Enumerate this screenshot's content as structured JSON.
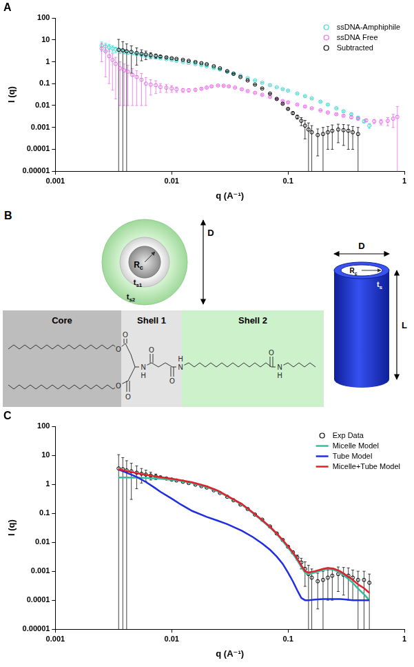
{
  "chart_data": [
    {
      "panel": "A",
      "type": "scatter",
      "log": true,
      "grid": false,
      "legend": "top-right",
      "x_label": "q (A⁻¹)",
      "y_label": "I (q)",
      "xlim": [
        0.001,
        1
      ],
      "ylim": [
        1e-05,
        100
      ],
      "xticks": [
        0.001,
        0.01,
        0.1,
        1
      ],
      "yticks": [
        1e-05,
        0.0001,
        0.001,
        0.01,
        0.1,
        1,
        10,
        100
      ],
      "series": [
        {
          "name": "ssDNA-Amphiphile",
          "color": "#3fd6d0",
          "marker": "circle",
          "x": [
            0.0025,
            0.0027,
            0.0029,
            0.0031,
            0.0033,
            0.0036,
            0.0039,
            0.0042,
            0.0046,
            0.005,
            0.0055,
            0.006,
            0.0066,
            0.0073,
            0.008,
            0.009,
            0.01,
            0.011,
            0.0125,
            0.014,
            0.016,
            0.018,
            0.02,
            0.023,
            0.026,
            0.03,
            0.034,
            0.039,
            0.045,
            0.052,
            0.06,
            0.07,
            0.08,
            0.09,
            0.1,
            0.12,
            0.14,
            0.16,
            0.19,
            0.22,
            0.26,
            0.3,
            0.35,
            0.4,
            0.45,
            0.5
          ],
          "values": [
            5.5,
            5.0,
            4.5,
            4.0,
            3.6,
            3.2,
            2.9,
            2.6,
            2.4,
            2.2,
            2.0,
            1.85,
            1.7,
            1.55,
            1.45,
            1.3,
            1.2,
            1.1,
            0.98,
            0.88,
            0.78,
            0.7,
            0.62,
            0.52,
            0.44,
            0.35,
            0.29,
            0.23,
            0.18,
            0.14,
            0.11,
            0.085,
            0.068,
            0.056,
            0.048,
            0.035,
            0.027,
            0.021,
            0.015,
            0.011,
            0.0075,
            0.0055,
            0.004,
            0.0028,
            0.0019,
            0.0012
          ],
          "errors": [
            2.5,
            2.0,
            1.6,
            1.3,
            1.0,
            0.8,
            0.6,
            0.4,
            0.3,
            0.2,
            0.15,
            0.1,
            0.08,
            0.06,
            0.05,
            0.04,
            0.03,
            0.03,
            0.02,
            0.02,
            0.02,
            0.02,
            0.02,
            0.015,
            0.01,
            0.01,
            0.008,
            0.006,
            0.005,
            0.004,
            0.003,
            0.003,
            0.002,
            0.002,
            0.002,
            0.0015,
            0.001,
            0.001,
            0.0008,
            0.0006,
            0.0005,
            0.0004,
            0.0003,
            0.0003,
            0.0003,
            0.0003
          ]
        },
        {
          "name": "ssDNA Free",
          "color": "#ee66ee",
          "marker": "circle",
          "x": [
            0.0025,
            0.0027,
            0.0029,
            0.0031,
            0.0033,
            0.0036,
            0.0039,
            0.0042,
            0.0046,
            0.005,
            0.0055,
            0.006,
            0.0066,
            0.0073,
            0.008,
            0.009,
            0.01,
            0.011,
            0.0125,
            0.014,
            0.016,
            0.018,
            0.02,
            0.022,
            0.025,
            0.028,
            0.031,
            0.035,
            0.04,
            0.045,
            0.052,
            0.06,
            0.07,
            0.08,
            0.09,
            0.1,
            0.12,
            0.14,
            0.16,
            0.19,
            0.22,
            0.26,
            0.3,
            0.35,
            0.4,
            0.47,
            0.55,
            0.63,
            0.72,
            0.8,
            0.87
          ],
          "values": [
            4.0,
            3.0,
            1.8,
            1.2,
            0.8,
            0.5,
            0.4,
            0.35,
            0.25,
            0.2,
            0.15,
            0.1,
            0.09,
            0.085,
            0.07,
            0.065,
            0.06,
            0.055,
            0.05,
            0.05,
            0.052,
            0.058,
            0.066,
            0.075,
            0.082,
            0.08,
            0.075,
            0.066,
            0.055,
            0.046,
            0.038,
            0.031,
            0.025,
            0.02,
            0.016,
            0.014,
            0.011,
            0.009,
            0.0075,
            0.006,
            0.0048,
            0.004,
            0.0034,
            0.0029,
            0.0025,
            0.0021,
            0.0019,
            0.0018,
            0.002,
            0.0025,
            0.003
          ],
          "errors": [
            3.0,
            2.8,
            1.7,
            1.15,
            0.78,
            0.49,
            0.39,
            0.34,
            0.24,
            0.19,
            0.14,
            0.09,
            0.06,
            0.05,
            0.03,
            0.025,
            0.02,
            0.015,
            0.01,
            0.008,
            0.006,
            0.005,
            0.005,
            0.005,
            0.005,
            0.005,
            0.004,
            0.004,
            0.003,
            0.003,
            0.002,
            0.002,
            0.0015,
            0.0012,
            0.001,
            0.0008,
            0.0006,
            0.0005,
            0.0004,
            0.0003,
            0.0003,
            0.0003,
            0.0003,
            0.0003,
            0.0003,
            0.0003,
            0.0004,
            0.0005,
            0.0008,
            0.0015,
            0.006
          ]
        },
        {
          "name": "Subtracted",
          "color": "#000000",
          "marker": "circle",
          "x": [
            0.0035,
            0.0038,
            0.0041,
            0.0045,
            0.005,
            0.0055,
            0.006,
            0.0066,
            0.0073,
            0.008,
            0.009,
            0.01,
            0.011,
            0.0125,
            0.014,
            0.016,
            0.018,
            0.02,
            0.023,
            0.026,
            0.03,
            0.034,
            0.039,
            0.045,
            0.052,
            0.06,
            0.07,
            0.08,
            0.09,
            0.1,
            0.11,
            0.12,
            0.13,
            0.14,
            0.15,
            0.16,
            0.18,
            0.2,
            0.22,
            0.24,
            0.27,
            0.3,
            0.33,
            0.36,
            0.4
          ],
          "values": [
            3.5,
            3.3,
            3.0,
            2.8,
            2.5,
            2.3,
            2.15,
            2.0,
            1.85,
            1.72,
            1.58,
            1.45,
            1.35,
            1.22,
            1.1,
            0.97,
            0.86,
            0.77,
            0.62,
            0.5,
            0.37,
            0.28,
            0.2,
            0.14,
            0.09,
            0.06,
            0.035,
            0.02,
            0.012,
            0.007,
            0.0045,
            0.003,
            0.002,
            0.0012,
            0.0008,
            0.0006,
            0.00045,
            0.0005,
            0.0006,
            0.0007,
            0.0008,
            0.00075,
            0.0007,
            0.0006,
            0.0005
          ],
          "errors": [
            7.0,
            5.0,
            3.5,
            2.5,
            1.8,
            1.2,
            0.9,
            0.6,
            0.4,
            0.2,
            0.1,
            0.05,
            0.04,
            0.03,
            0.02,
            0.02,
            0.015,
            0.01,
            0.01,
            0.008,
            0.006,
            0.005,
            0.004,
            0.003,
            0.002,
            0.0015,
            0.001,
            0.0008,
            0.0006,
            0.0005,
            0.0005,
            0.0006,
            0.0008,
            0.0009,
            0.0008,
            0.0006,
            0.0004,
            0.0005,
            0.0005,
            0.0006,
            0.0006,
            0.0006,
            0.0006,
            0.0005,
            0.0005
          ]
        }
      ]
    },
    {
      "panel": "C",
      "type": "scatter",
      "log": true,
      "grid": false,
      "legend": "top-right",
      "x_label": "q (A⁻¹)",
      "y_label": "I (q)",
      "xlim": [
        0.001,
        1
      ],
      "ylim": [
        1e-05,
        100
      ],
      "xticks": [
        0.001,
        0.01,
        0.1,
        1
      ],
      "yticks": [
        1e-05,
        0.0001,
        0.001,
        0.01,
        0.1,
        1,
        10,
        100
      ],
      "series": [
        {
          "name": "Exp Data",
          "color": "#000000",
          "marker": "circle",
          "x": [
            0.0035,
            0.0038,
            0.0041,
            0.0045,
            0.005,
            0.0055,
            0.006,
            0.0066,
            0.0073,
            0.008,
            0.009,
            0.01,
            0.011,
            0.0125,
            0.014,
            0.016,
            0.018,
            0.02,
            0.023,
            0.026,
            0.03,
            0.034,
            0.039,
            0.045,
            0.052,
            0.06,
            0.07,
            0.08,
            0.09,
            0.1,
            0.11,
            0.12,
            0.13,
            0.14,
            0.15,
            0.16,
            0.18,
            0.2,
            0.22,
            0.24,
            0.27,
            0.3,
            0.33,
            0.36,
            0.4,
            0.45,
            0.5
          ],
          "values": [
            3.5,
            3.3,
            3.0,
            2.8,
            2.5,
            2.3,
            2.15,
            2.0,
            1.85,
            1.72,
            1.58,
            1.45,
            1.35,
            1.22,
            1.1,
            0.97,
            0.86,
            0.77,
            0.62,
            0.5,
            0.37,
            0.28,
            0.2,
            0.14,
            0.09,
            0.06,
            0.035,
            0.02,
            0.012,
            0.007,
            0.0045,
            0.003,
            0.002,
            0.0012,
            0.0008,
            0.0006,
            0.00045,
            0.0005,
            0.0006,
            0.0007,
            0.0008,
            0.00075,
            0.0007,
            0.0006,
            0.0005,
            0.0005,
            0.0004
          ],
          "errors": [
            7.0,
            5.0,
            3.5,
            2.5,
            1.8,
            1.2,
            0.9,
            0.6,
            0.4,
            0.2,
            0.1,
            0.05,
            0.04,
            0.03,
            0.02,
            0.02,
            0.015,
            0.01,
            0.01,
            0.008,
            0.006,
            0.005,
            0.004,
            0.003,
            0.002,
            0.0015,
            0.001,
            0.0008,
            0.0006,
            0.0005,
            0.0005,
            0.0006,
            0.0008,
            0.0009,
            0.0008,
            0.0006,
            0.0004,
            0.0005,
            0.0005,
            0.0006,
            0.0006,
            0.0006,
            0.0006,
            0.0005,
            0.0005,
            0.0005,
            0.0004
          ]
        },
        {
          "name": "Micelle Model",
          "color": "#2fbf9f",
          "type": "line",
          "line_style": "solid",
          "x": [
            0.0035,
            0.004,
            0.005,
            0.006,
            0.007,
            0.008,
            0.01,
            0.012,
            0.015,
            0.02,
            0.025,
            0.03,
            0.04,
            0.05,
            0.06,
            0.07,
            0.08,
            0.09,
            0.1,
            0.11,
            0.12,
            0.13,
            0.14,
            0.15,
            0.17,
            0.2,
            0.22,
            0.25,
            0.28,
            0.32,
            0.36,
            0.4,
            0.45,
            0.5
          ],
          "values": [
            1.7,
            1.7,
            1.68,
            1.65,
            1.6,
            1.55,
            1.42,
            1.3,
            1.1,
            0.8,
            0.57,
            0.38,
            0.2,
            0.1,
            0.055,
            0.032,
            0.019,
            0.011,
            0.0065,
            0.004,
            0.0024,
            0.0014,
            0.0009,
            0.0008,
            0.0009,
            0.0011,
            0.0012,
            0.0011,
            0.0009,
            0.0006,
            0.0004,
            0.00025,
            0.00016,
            0.0001
          ]
        },
        {
          "name": "Tube Model",
          "color": "#1f2ee0",
          "type": "line",
          "line_style": "solid",
          "x": [
            0.0035,
            0.004,
            0.005,
            0.006,
            0.007,
            0.008,
            0.01,
            0.012,
            0.015,
            0.02,
            0.025,
            0.03,
            0.04,
            0.05,
            0.06,
            0.07,
            0.08,
            0.09,
            0.1,
            0.11,
            0.12,
            0.13,
            0.14,
            0.15,
            0.17,
            0.2,
            0.22,
            0.25,
            0.28,
            0.32,
            0.36,
            0.4,
            0.45,
            0.5
          ],
          "values": [
            3.2,
            2.6,
            1.8,
            1.2,
            0.8,
            0.55,
            0.32,
            0.2,
            0.12,
            0.075,
            0.055,
            0.042,
            0.025,
            0.015,
            0.009,
            0.0055,
            0.0032,
            0.0018,
            0.0009,
            0.00045,
            0.00022,
            0.00012,
            0.0001,
            0.0001,
            0.000105,
            0.00011,
            0.00011,
            0.00011,
            0.00011,
            0.000105,
            0.0001,
            0.0001,
            0.0001,
            0.0001
          ]
        },
        {
          "name": "Micelle+Tube Model",
          "color": "#e3202a",
          "type": "line",
          "line_style": "solid",
          "x": [
            0.0035,
            0.004,
            0.005,
            0.006,
            0.007,
            0.008,
            0.01,
            0.012,
            0.015,
            0.02,
            0.025,
            0.03,
            0.04,
            0.05,
            0.06,
            0.07,
            0.08,
            0.09,
            0.1,
            0.11,
            0.12,
            0.13,
            0.14,
            0.15,
            0.17,
            0.2,
            0.22,
            0.25,
            0.28,
            0.32,
            0.36,
            0.4,
            0.45,
            0.5
          ],
          "values": [
            3.3,
            2.9,
            2.4,
            2.1,
            1.9,
            1.75,
            1.55,
            1.38,
            1.17,
            0.85,
            0.6,
            0.4,
            0.21,
            0.105,
            0.058,
            0.034,
            0.02,
            0.012,
            0.0072,
            0.0045,
            0.0027,
            0.0016,
            0.001,
            0.0009,
            0.001,
            0.0012,
            0.0013,
            0.0012,
            0.001,
            0.0007,
            0.0005,
            0.00035,
            0.00026,
            0.00018
          ]
        }
      ]
    }
  ],
  "diagram": {
    "panel": "B",
    "micelle": {
      "radius_label": "Rc",
      "shell_labels": [
        "ts1",
        "ts2"
      ],
      "diameter_label": "D"
    },
    "regions": [
      "Core",
      "Shell 1",
      "Shell 2"
    ],
    "atoms": [
      "O",
      "O",
      "O",
      "O",
      "N",
      "H",
      "O",
      "O",
      "N",
      "H",
      "O",
      "N",
      "H"
    ],
    "tube": {
      "diameter_label": "D",
      "radius_label": "Rc",
      "shell_label": "ts",
      "length_label": "L"
    }
  }
}
